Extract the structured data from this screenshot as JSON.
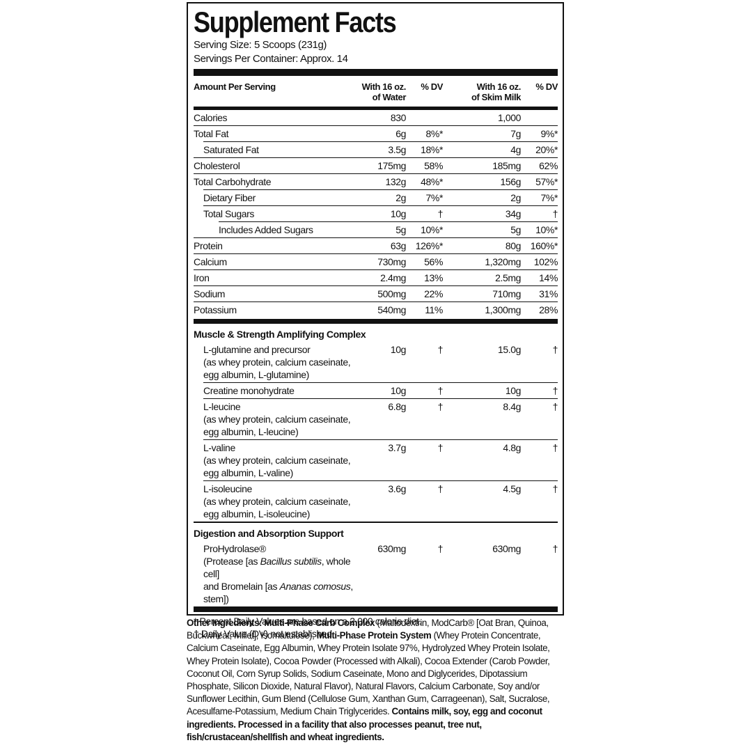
{
  "title": "Supplement Facts",
  "serving_size": "Serving Size: 5 Scoops (231g)",
  "servings_per_container": "Servings Per Container: Approx. 14",
  "header": {
    "amount": "Amount Per Serving",
    "water": [
      "With 16 oz.",
      "of Water"
    ],
    "water_dv": "% DV",
    "milk": [
      "With 16 oz.",
      "of Skim Milk"
    ],
    "milk_dv": "% DV"
  },
  "nutrients": [
    {
      "name": "Calories",
      "water": "830",
      "milk": "1,000"
    },
    {
      "name": "Total Fat",
      "water": "6g",
      "water_dv": "8%*",
      "milk": "7g",
      "milk_dv": "9%*"
    },
    {
      "name": "Saturated Fat",
      "water": "3.5g",
      "water_dv": "18%*",
      "milk": "4g",
      "milk_dv": "20%*"
    },
    {
      "name": "Cholesterol",
      "water": "175mg",
      "water_dv": "58%",
      "milk": "185mg",
      "milk_dv": "62%"
    },
    {
      "name": "Total Carbohydrate",
      "water": "132g",
      "water_dv": "48%*",
      "milk": "156g",
      "milk_dv": "57%*"
    },
    {
      "name": "Dietary Fiber",
      "water": "2g",
      "water_dv": "7%*",
      "milk": "2g",
      "milk_dv": "7%*"
    },
    {
      "name": "Total Sugars",
      "water": "10g",
      "water_dv": "†",
      "milk": "34g",
      "milk_dv": "†"
    },
    {
      "name": "Includes Added Sugars",
      "water": "5g",
      "water_dv": "10%*",
      "milk": "5g",
      "milk_dv": "10%*"
    },
    {
      "name": "Protein",
      "water": "63g",
      "water_dv": "126%*",
      "milk": "80g",
      "milk_dv": "160%*"
    },
    {
      "name": "Calcium",
      "water": "730mg",
      "water_dv": "56%",
      "milk": "1,320mg",
      "milk_dv": "102%"
    },
    {
      "name": "Iron",
      "water": "2.4mg",
      "water_dv": "13%",
      "milk": "2.5mg",
      "milk_dv": "14%"
    },
    {
      "name": "Sodium",
      "water": "500mg",
      "water_dv": "22%",
      "milk": "710mg",
      "milk_dv": "31%"
    },
    {
      "name": "Potassium",
      "water": "540mg",
      "water_dv": "11%",
      "milk": "1,300mg",
      "milk_dv": "28%"
    }
  ],
  "sections": [
    {
      "title": "Muscle & Strength Amplifying Complex",
      "items": [
        {
          "lines": [
            "L-glutamine and precursor",
            "(as whey protein, calcium caseinate,",
            "egg albumin, L-glutamine)"
          ],
          "water": "10g",
          "water_dv": "†",
          "milk": "15.0g",
          "milk_dv": "†"
        },
        {
          "lines": [
            "Creatine monohydrate"
          ],
          "water": "10g",
          "water_dv": "†",
          "milk": "10g",
          "milk_dv": "†"
        },
        {
          "lines": [
            "L-leucine",
            "(as whey protein, calcium caseinate,",
            "egg albumin, L-leucine)"
          ],
          "water": "6.8g",
          "water_dv": "†",
          "milk": "8.4g",
          "milk_dv": "†"
        },
        {
          "lines": [
            "L-valine",
            "(as whey protein, calcium caseinate,",
            "egg albumin, L-valine)"
          ],
          "water": "3.7g",
          "water_dv": "†",
          "milk": "4.8g",
          "milk_dv": "†"
        },
        {
          "lines": [
            "L-isoleucine",
            "(as whey protein, calcium caseinate,",
            "egg albumin, L-isoleucine)"
          ],
          "water": "3.6g",
          "water_dv": "†",
          "milk": "4.5g",
          "milk_dv": "†"
        }
      ]
    },
    {
      "title": "Digestion and Absorption Support",
      "items": [
        {
          "lines": [
            "ProHydrolase®",
            [
              "(Protease [as ",
              "Bacillus subtilis",
              ", whole cell]"
            ],
            [
              "and Bromelain [as ",
              "Ananas comosus",
              ", stem])"
            ]
          ],
          "water": "630mg",
          "water_dv": "†",
          "milk": "630mg",
          "milk_dv": "†"
        }
      ]
    }
  ],
  "footnotes": [
    "* Percent Daily Values are based on a 2,000 calorie diet.",
    "† Daily Value (DV) not established."
  ],
  "other_ingredients": [
    {
      "text": "Other Ingredients: Multi-Phase Carb Complex",
      "bold": true
    },
    {
      "text": " (Maltodextrin, ModCarb® [Oat Bran, Quinoa, Buckwheat, Millet], Isomaltulose), "
    },
    {
      "text": "Multi-Phase Protein System",
      "bold": true
    },
    {
      "text": " (Whey Protein Concentrate, Calcium Caseinate, Egg Albumin, Whey Protein Isolate 97%, Hydrolyzed Whey Protein Isolate, Whey Protein Isolate), Cocoa Powder (Processed with Alkali), Cocoa Extender (Carob Powder, Coconut Oil, Corn Syrup Solids, Sodium Caseinate, Mono and Diglycerides, Dipotassium Phosphate, Silicon Dioxide, Natural Flavor), Natural Flavors, Calcium Carbonate, Soy and/or Sunflower Lecithin, Gum Blend (Cellulose Gum, Xanthan Gum, Carrageenan), Salt, Sucralose, Acesulfame-Potassium, Medium Chain Triglycerides. "
    },
    {
      "text": "Contains milk, soy, egg and coconut ingredients. Processed in a facility that also processes peanut, tree nut, fish/crustacean/shellfish and wheat ingredients.",
      "bold": true
    }
  ]
}
